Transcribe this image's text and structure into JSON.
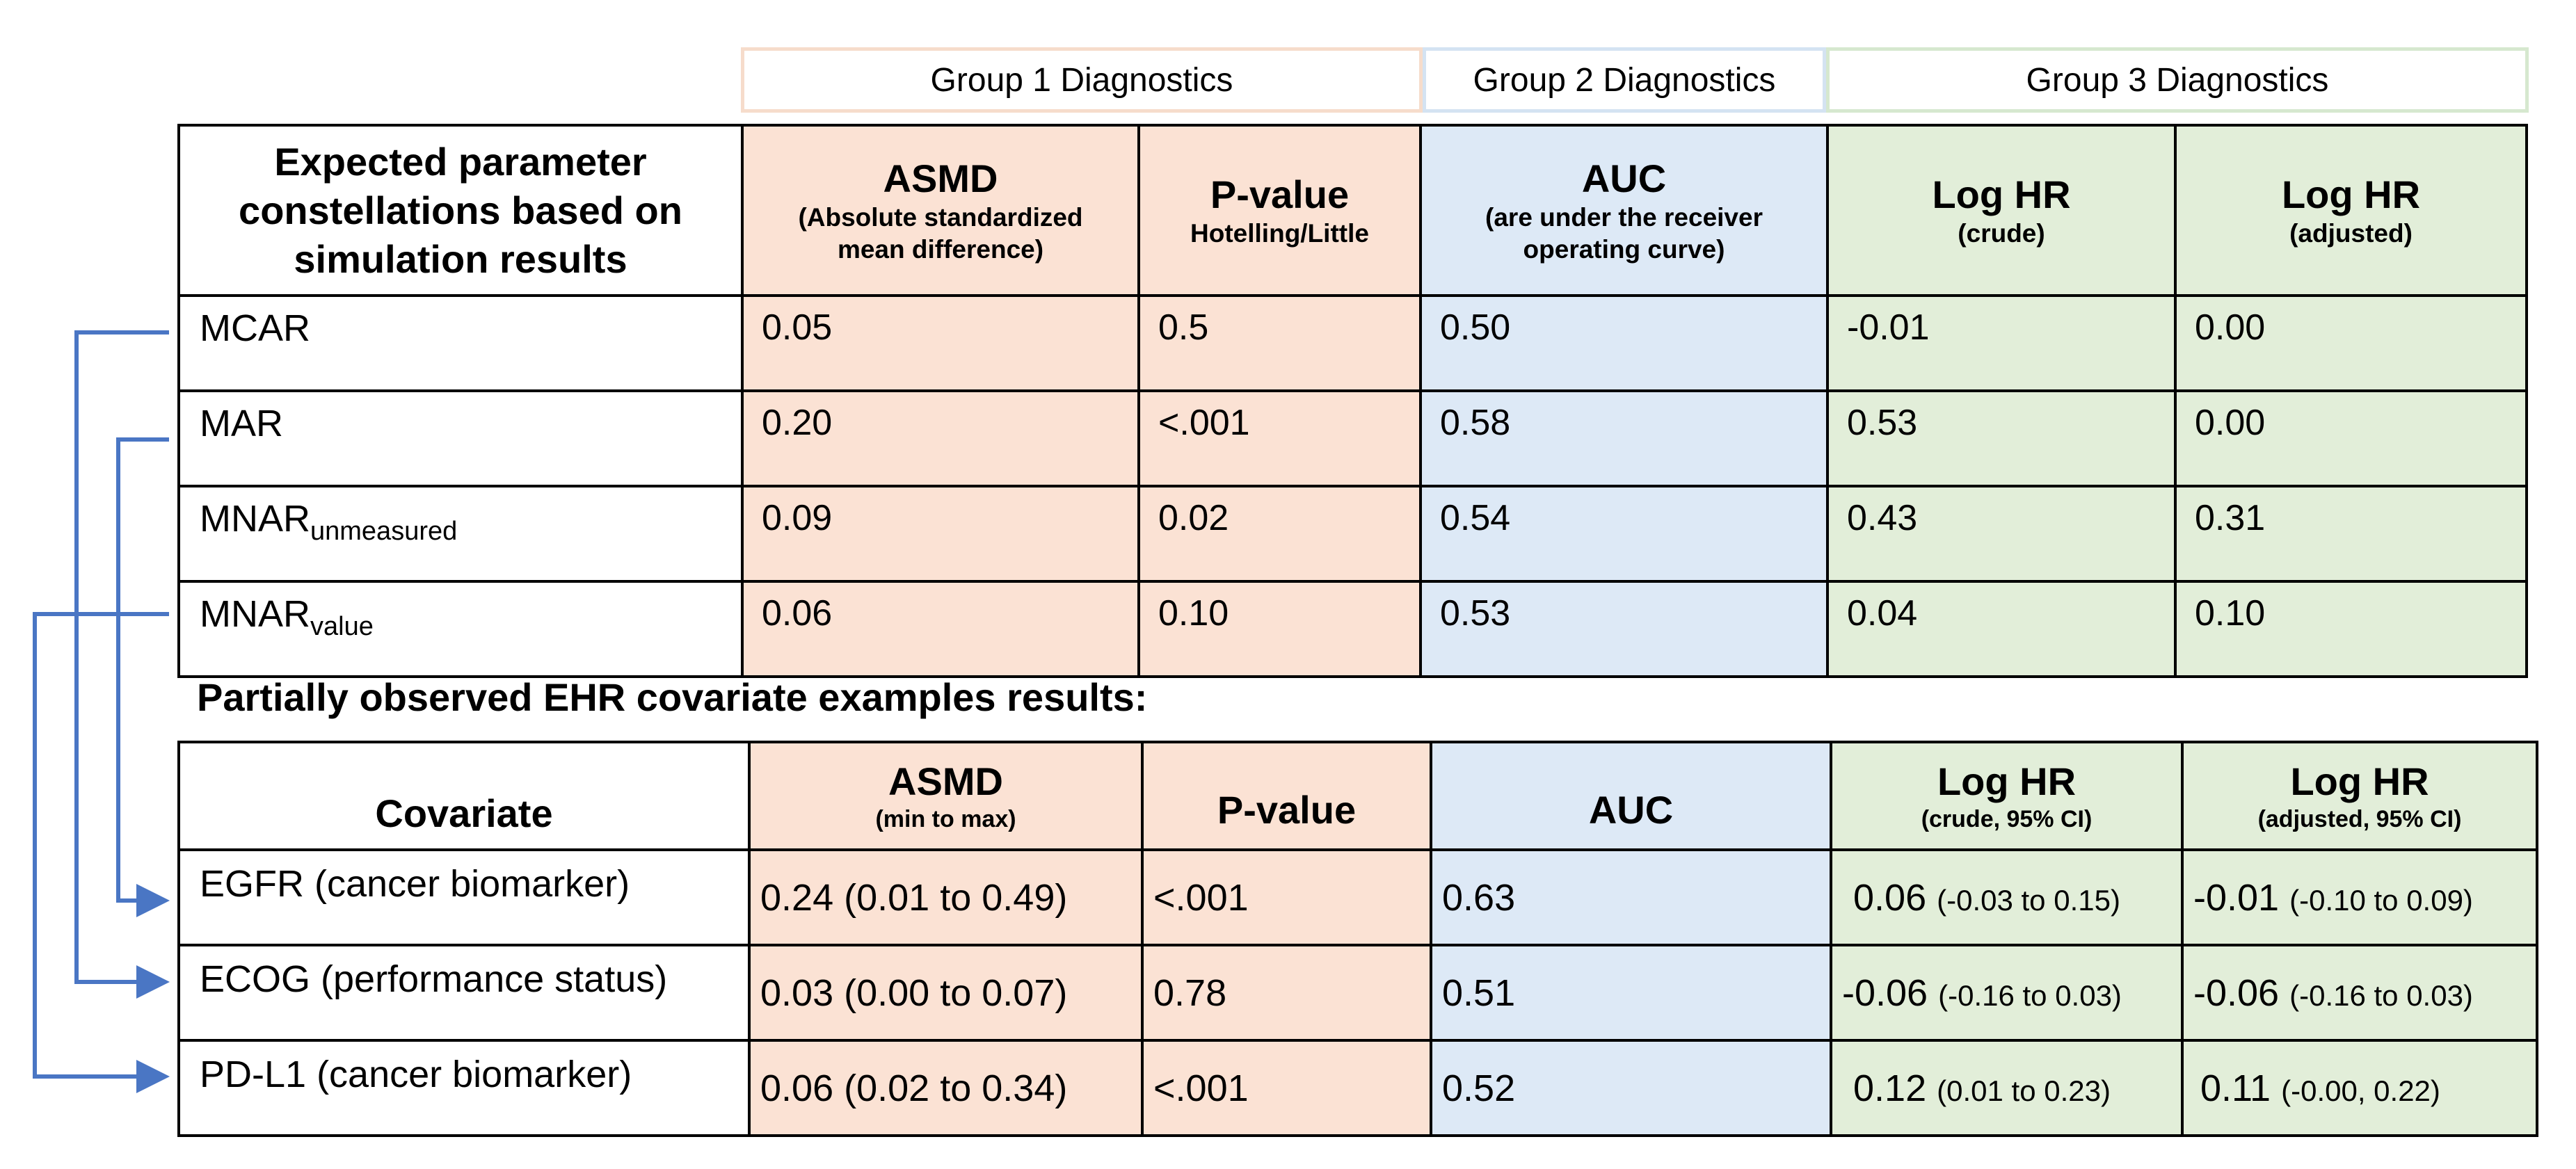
{
  "groups": {
    "g1": "Group 1 Diagnostics",
    "g2": "Group 2 Diagnostics",
    "g3": "Group 3 Diagnostics"
  },
  "table1": {
    "header": {
      "row_title": "Expected parameter constellations based on simulation results",
      "asmd": {
        "main": "ASMD",
        "sub": "(Absolute standardized mean difference)"
      },
      "pvalue": {
        "main": "P-value",
        "sub": "Hotelling/Little"
      },
      "auc": {
        "main": "AUC",
        "sub": "(are under the receiver operating curve)"
      },
      "loghr_crude": {
        "main": "Log HR",
        "sub": "(crude)"
      },
      "loghr_adjusted": {
        "main": "Log HR",
        "sub": "(adjusted)"
      }
    },
    "rows": [
      {
        "label": "MCAR",
        "label_sub": "",
        "asmd": "0.05",
        "pvalue": "0.5",
        "auc": "0.50",
        "crude": "-0.01",
        "adjusted": "0.00"
      },
      {
        "label": "MAR",
        "label_sub": "",
        "asmd": "0.20",
        "pvalue": "<.001",
        "auc": "0.58",
        "crude": "0.53",
        "adjusted": "0.00"
      },
      {
        "label": "MNAR",
        "label_sub": "unmeasured",
        "asmd": "0.09",
        "pvalue": "0.02",
        "auc": "0.54",
        "crude": "0.43",
        "adjusted": "0.31"
      },
      {
        "label": "MNAR",
        "label_sub": "value",
        "asmd": "0.06",
        "pvalue": "0.10",
        "auc": "0.53",
        "crude": "0.04",
        "adjusted": "0.10"
      }
    ]
  },
  "section_title": "Partially observed EHR covariate examples results:",
  "table2": {
    "header": {
      "covariate": "Covariate",
      "asmd": {
        "main": "ASMD",
        "sub": "(min to max)"
      },
      "pvalue": "P-value",
      "auc": "AUC",
      "loghr_crude": {
        "main": "Log HR",
        "sub": "(crude, 95% CI)"
      },
      "loghr_adjusted": {
        "main": "Log HR",
        "sub": "(adjusted, 95% CI)"
      }
    },
    "rows": [
      {
        "label": "EGFR (cancer biomarker)",
        "asmd": "0.24",
        "asmd_range": "(0.01 to 0.49)",
        "pvalue": "<.001",
        "auc": "0.63",
        "crude": "0.06",
        "crude_ci": "(-0.03 to 0.15)",
        "adjusted": "-0.01",
        "adjusted_ci": "(-0.10 to 0.09)"
      },
      {
        "label": "ECOG (performance status)",
        "asmd": "0.03",
        "asmd_range": "(0.00 to 0.07)",
        "pvalue": "0.78",
        "auc": "0.51",
        "crude": "-0.06",
        "crude_ci": "(-0.16 to 0.03)",
        "adjusted": "-0.06",
        "adjusted_ci": "(-0.16 to 0.03)"
      },
      {
        "label": "PD-L1 (cancer biomarker)",
        "asmd": "0.06",
        "asmd_range": "(0.02 to 0.34)",
        "pvalue": "<.001",
        "auc": "0.52",
        "crude": "0.12",
        "crude_ci": "(0.01 to 0.23)",
        "adjusted": "0.11",
        "adjusted_ci": "(-0.00, 0.22)"
      }
    ]
  },
  "colors": {
    "connector": "#4a76c4"
  }
}
